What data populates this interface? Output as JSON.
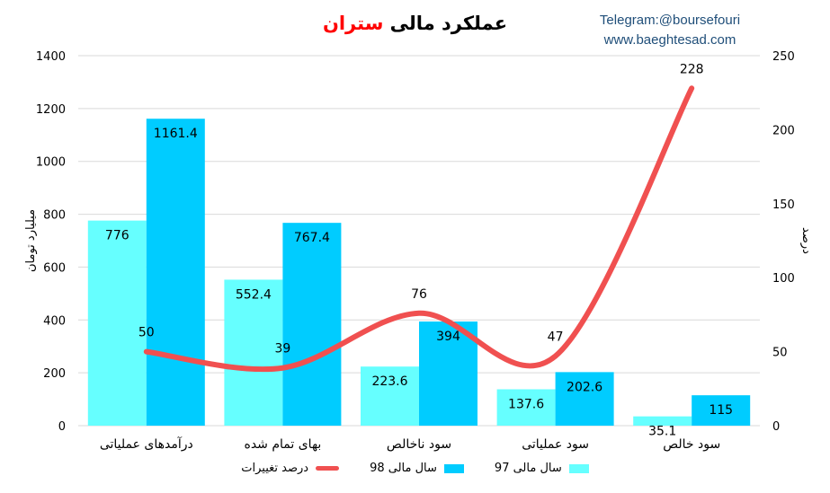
{
  "title": {
    "prefix": "عملکرد مالی",
    "symbol": "ستران",
    "symbol_color": "#ff0000"
  },
  "watermark": {
    "line1": "Telegram:@boursefouri",
    "line2": "www.baeghtesad.com"
  },
  "chart_data": {
    "type": "bar",
    "categories": [
      "درآمدهای عملیاتی",
      "بهای تمام شده",
      "سود ناخالص",
      "سود عملیاتی",
      "سود خالص"
    ],
    "series": [
      {
        "name": "سال مالی 97",
        "type": "bar",
        "color": "#66ffff",
        "values": [
          776,
          552.4,
          223.6,
          137.6,
          35.1
        ],
        "labels": [
          "776",
          "552.4",
          "223.6",
          "137.6",
          "35.1"
        ]
      },
      {
        "name": "سال مالی 98",
        "type": "bar",
        "color": "#00ccff",
        "values": [
          1161.4,
          767.4,
          394,
          202.6,
          115
        ],
        "labels": [
          "1161.4",
          "767.4",
          "394",
          "202.6",
          "115"
        ]
      },
      {
        "name": "درصد تغییرات",
        "type": "line",
        "axis": "right",
        "color": "#f05050",
        "values": [
          50,
          39,
          76,
          47,
          228
        ],
        "labels": [
          "50",
          "39",
          "76",
          "47",
          "228"
        ]
      }
    ],
    "ylabel_left": "میلیارد تومان",
    "ylabel_right": "درصد",
    "ylim_left": [
      0,
      1400
    ],
    "yticks_left": [
      0,
      200,
      400,
      600,
      800,
      1000,
      1200,
      1400
    ],
    "ylim_right": [
      0,
      250
    ],
    "yticks_right": [
      0,
      50,
      100,
      150,
      200,
      250
    ],
    "grid": true,
    "legend_position": "bottom"
  }
}
